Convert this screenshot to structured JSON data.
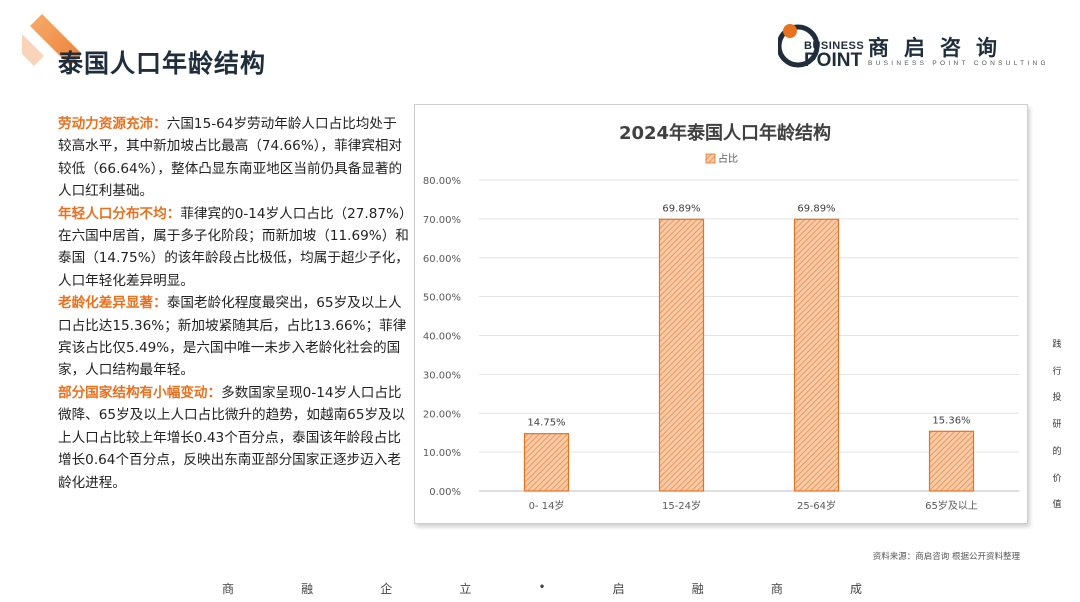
{
  "page_title": "泰国人口年龄结构",
  "logo": {
    "word1": "BUSINESS",
    "word2": "POINT",
    "cn": "商启咨询",
    "en": "BUSINESS POINT CONSULTING"
  },
  "paragraphs": [
    {
      "keyword": "劳动力资源充沛：",
      "text": "六国15-64岁劳动年龄人口占比均处于较高水平，其中新加坡占比最高（74.66%），菲律宾相对较低（66.64%），整体凸显东南亚地区当前仍具备显著的人口红利基础。"
    },
    {
      "keyword": "年轻人口分布不均：",
      "text": "菲律宾的0-14岁人口占比（27.87%）在六国中居首，属于多子化阶段；而新加坡（11.69%）和泰国（14.75%）的该年龄段占比极低，均属于超少子化，人口年轻化差异明显。"
    },
    {
      "keyword": "老龄化差异显著：",
      "text": "泰国老龄化程度最突出，65岁及以上人口占比达15.36%；新加坡紧随其后，占比13.66%；菲律宾该占比仅5.49%，是六国中唯一未步入老龄化社会的国家，人口结构最年轻。"
    },
    {
      "keyword": "部分国家结构有小幅变动：",
      "text": "多数国家呈现0-14岁人口占比微降、65岁及以上人口占比微升的趋势，如越南65岁及以上人口占比较上年增长0.43个百分点，泰国该年龄段占比增长0.64个百分点，反映出东南亚部分国家正逐步迈入老龄化进程。"
    }
  ],
  "chart_data": {
    "type": "bar",
    "title": "2024年泰国人口年龄结构",
    "legend": "占比",
    "legend_position": "top",
    "categories": [
      "0- 14岁",
      "15-24岁",
      "25-64岁",
      "65岁及以上"
    ],
    "values": [
      14.75,
      69.89,
      69.89,
      15.36
    ],
    "value_labels": [
      "14.75%",
      "69.89%",
      "69.89%",
      "15.36%"
    ],
    "y_ticks": [
      "0.00%",
      "10.00%",
      "20.00%",
      "30.00%",
      "40.00%",
      "50.00%",
      "60.00%",
      "70.00%",
      "80.00%"
    ],
    "ylim": [
      0,
      80
    ],
    "grid": true,
    "bar_color": "#f4b183",
    "bar_border": "#e8711f"
  },
  "side_text": [
    "践",
    "行",
    "投",
    "研",
    "的",
    "价",
    "值"
  ],
  "source_note": "资料来源：商启咨询 根据公开资料整理",
  "footer_slogan": [
    "商",
    "融",
    "企",
    "立",
    "•",
    "启",
    "融",
    "商",
    "成"
  ],
  "colors": {
    "accent": "#e8711f",
    "title": "#1f2d3d"
  }
}
